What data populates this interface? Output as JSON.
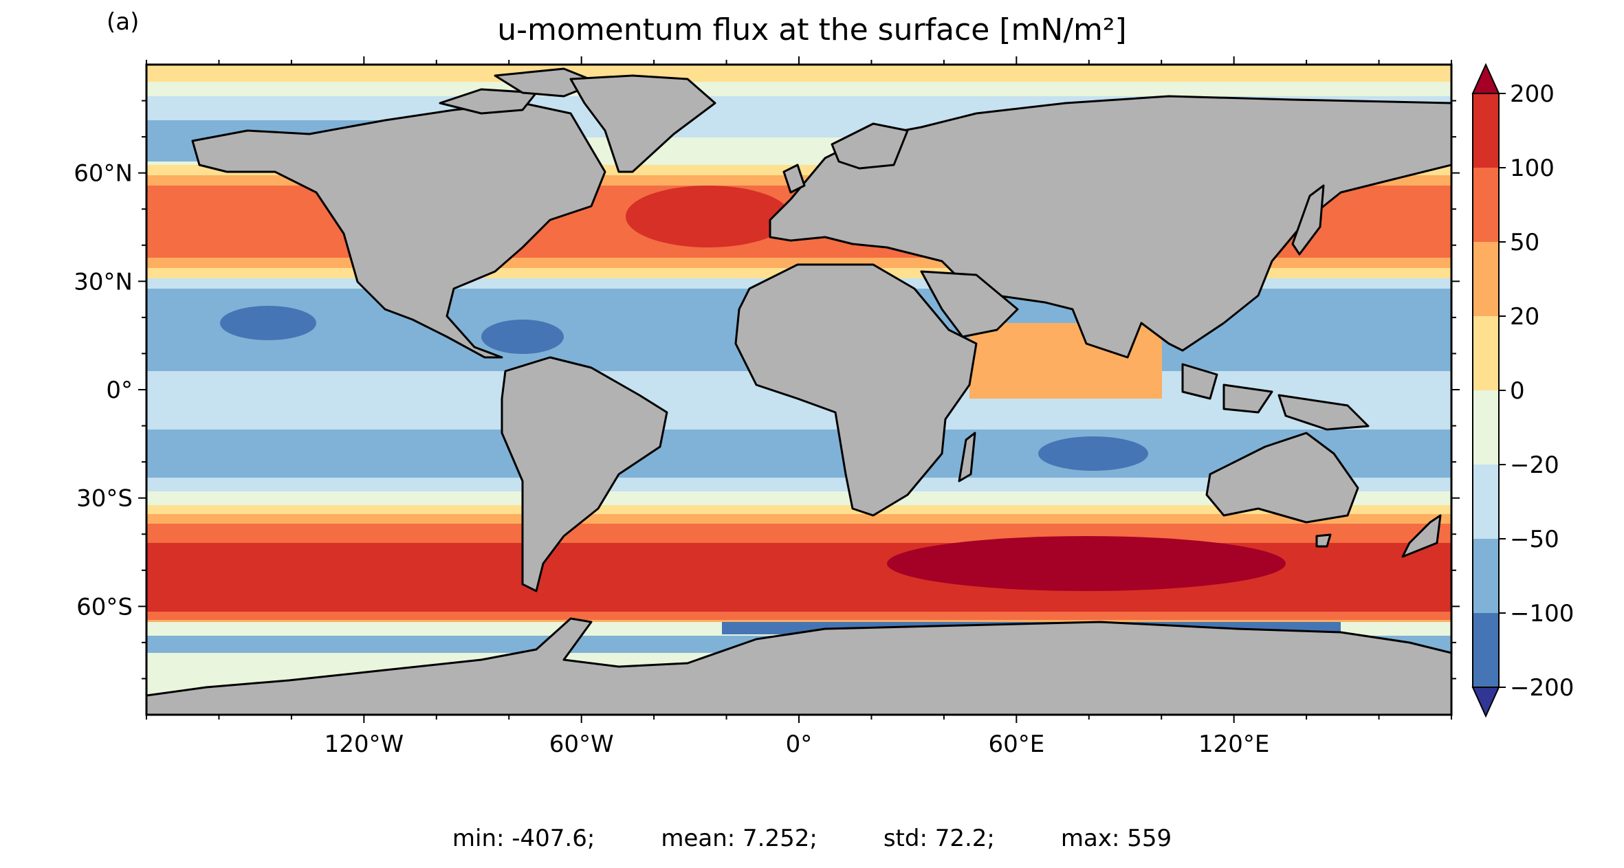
{
  "panel_label": "(a)",
  "title": "u-momentum flux at the surface [mN/m²]",
  "colorbar": {
    "levels": [
      "200",
      "100",
      "50",
      "20",
      "0",
      "−20",
      "−50",
      "−100",
      "−200"
    ],
    "colors": {
      "extend_max": "#a50026",
      "100_200": "#d73027",
      "50_100": "#f46d43",
      "20_50": "#fdae61",
      "0_20": "#fee090",
      "m20_0": "#e9f5dc",
      "m50_m20": "#c6e1ef",
      "m100_m50": "#7fb2d6",
      "m200_m100": "#4575b4",
      "extend_min": "#313695"
    }
  },
  "land_color": "#b2b2b2",
  "lat_labels": [
    "60°N",
    "30°N",
    "0°",
    "30°S",
    "60°S"
  ],
  "lon_labels": [
    "120°W",
    "60°W",
    "0°",
    "60°E",
    "120°E"
  ],
  "stats": {
    "min": "min: -407.6;",
    "mean": "mean: 7.252;",
    "std": "std: 72.2;",
    "max": "max: 559"
  }
}
